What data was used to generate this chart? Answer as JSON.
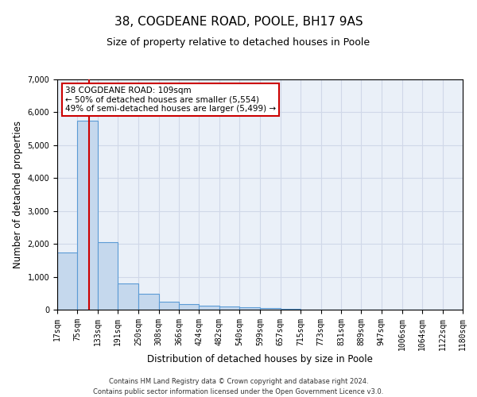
{
  "title": "38, COGDEANE ROAD, POOLE, BH17 9AS",
  "subtitle": "Size of property relative to detached houses in Poole",
  "xlabel": "Distribution of detached houses by size in Poole",
  "ylabel": "Number of detached properties",
  "footer_line1": "Contains HM Land Registry data © Crown copyright and database right 2024.",
  "footer_line2": "Contains public sector information licensed under the Open Government Licence v3.0.",
  "annotation_title": "38 COGDEANE ROAD: 109sqm",
  "annotation_line1": "← 50% of detached houses are smaller (5,554)",
  "annotation_line2": "49% of semi-detached houses are larger (5,499) →",
  "property_size": 109,
  "red_line_x": 109,
  "bar_color": "#c5d8ed",
  "bar_edge_color": "#5b9bd5",
  "red_line_color": "#cc0000",
  "grid_color": "#d0d8e8",
  "background_color": "#eaf0f8",
  "bin_edges": [
    17,
    75,
    133,
    191,
    250,
    308,
    366,
    424,
    482,
    540,
    599,
    657,
    715,
    773,
    831,
    889,
    947,
    1006,
    1064,
    1122,
    1180
  ],
  "bin_labels": [
    "17sqm",
    "75sqm",
    "133sqm",
    "191sqm",
    "250sqm",
    "308sqm",
    "366sqm",
    "424sqm",
    "482sqm",
    "540sqm",
    "599sqm",
    "657sqm",
    "715sqm",
    "773sqm",
    "831sqm",
    "889sqm",
    "947sqm",
    "1006sqm",
    "1064sqm",
    "1122sqm",
    "1180sqm"
  ],
  "bar_heights": [
    1750,
    5750,
    2050,
    800,
    475,
    250,
    175,
    130,
    100,
    70,
    45,
    20,
    10,
    5,
    3,
    2,
    1,
    1,
    0,
    0
  ],
  "ylim": [
    0,
    7000
  ],
  "yticks": [
    0,
    1000,
    2000,
    3000,
    4000,
    5000,
    6000,
    7000
  ],
  "annotation_box_color": "white",
  "annotation_box_edge": "#cc0000",
  "title_fontsize": 11,
  "subtitle_fontsize": 9,
  "axis_label_fontsize": 8.5,
  "tick_fontsize": 7,
  "footer_fontsize": 6
}
